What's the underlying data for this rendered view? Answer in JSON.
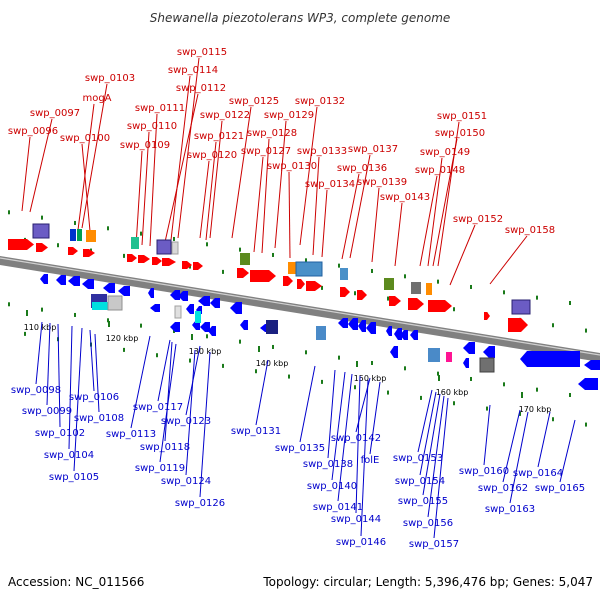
{
  "title": "Shewanella piezotolerans WP3, complete genome",
  "footer": {
    "accession": "Accession: NC_011566",
    "summary": "Topology: circular; Length: 5,396,476 bp; Genes: 5,047"
  },
  "colors": {
    "forward_label": "#cc0000",
    "reverse_label": "#0000cc",
    "forward_arrow": "#ff0000",
    "reverse_arrow": "#0000ff",
    "backbone": "#808080",
    "tick_green": "#1a7a1a"
  },
  "axis_ticks": [
    "110 kbp",
    "120 kbp",
    "130 kbp",
    "140 kbp",
    "150 kbp",
    "160 kbp",
    "170 kbp"
  ],
  "forward_genes": [
    "swp_0115",
    "swp_0114",
    "swp_0112",
    "swp_0103",
    "mogA",
    "swp_0111",
    "swp_0097",
    "swp_0110",
    "swp_0125",
    "swp_0132",
    "swp_0096",
    "swp_0100",
    "swp_0122",
    "swp_0129",
    "swp_0151",
    "swp_0109",
    "swp_0121",
    "swp_0128",
    "swp_0150",
    "swp_0120",
    "swp_0127",
    "swp_0133",
    "swp_0137",
    "swp_0149",
    "swp_0130",
    "swp_0136",
    "swp_0148",
    "swp_0134",
    "swp_0139",
    "swp_0143",
    "swp_0152",
    "swp_0158"
  ],
  "reverse_genes": [
    "swp_0098",
    "swp_0106",
    "swp_0099",
    "swp_0108",
    "swp_0102",
    "swp_0104",
    "swp_0105",
    "swp_0117",
    "swp_0113",
    "swp_0123",
    "swp_0118",
    "swp_0119",
    "swp_0124",
    "swp_0126",
    "swp_0131",
    "swp_0135",
    "swp_0142",
    "swp_0138",
    "folE",
    "swp_0140",
    "swp_0141",
    "swp_0144",
    "swp_0146",
    "swp_0153",
    "swp_0154",
    "swp_0155",
    "swp_0156",
    "swp_0157",
    "swp_0160",
    "swp_0162",
    "swp_0163",
    "swp_0164",
    "swp_0165"
  ]
}
